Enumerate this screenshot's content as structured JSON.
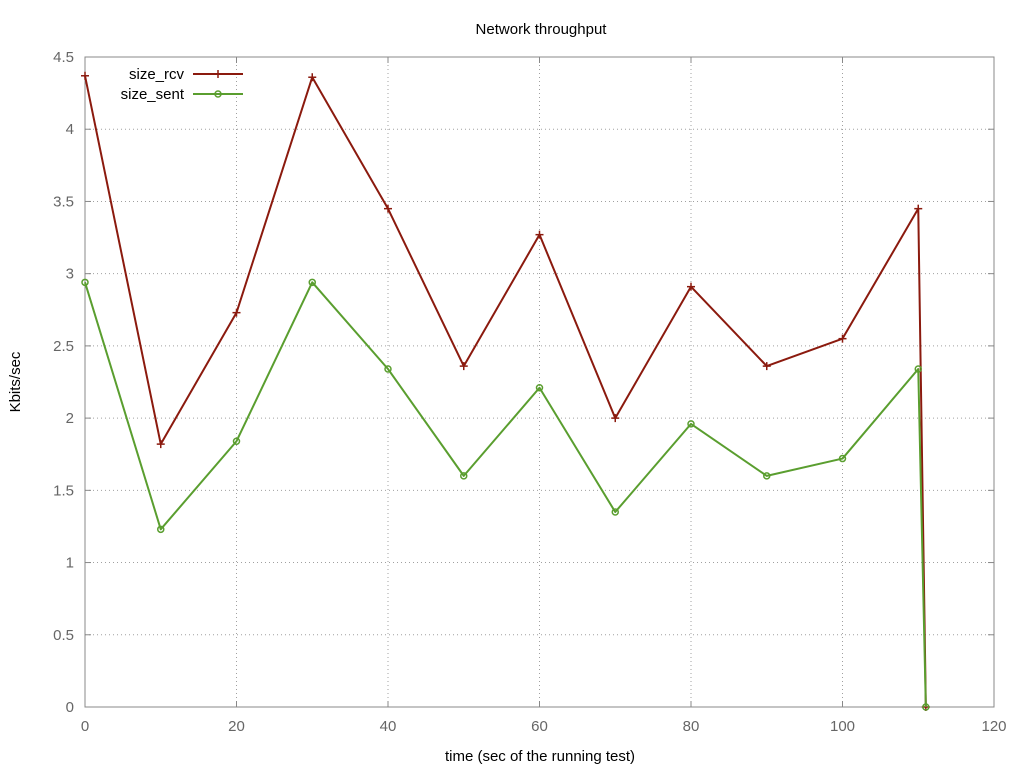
{
  "chart_data": {
    "type": "line",
    "title": "Network throughput",
    "xlabel": "time (sec of the running test)",
    "ylabel": "Kbits/sec",
    "xlim": [
      0,
      120
    ],
    "ylim": [
      0,
      4.5
    ],
    "xticks": [
      "0",
      "20",
      "40",
      "60",
      "80",
      "100",
      "120"
    ],
    "yticks": [
      "0",
      "0.5",
      "1",
      "1.5",
      "2",
      "2.5",
      "3",
      "3.5",
      "4",
      "4.5"
    ],
    "grid": true,
    "legend_position": "top-left",
    "series": [
      {
        "name": "size_rcv",
        "color": "#8b1a0e",
        "marker": "plus",
        "x": [
          0,
          10,
          20,
          30,
          40,
          50,
          60,
          70,
          80,
          90,
          100,
          110,
          111
        ],
        "y": [
          4.37,
          1.82,
          2.73,
          4.36,
          3.45,
          2.36,
          3.27,
          2.0,
          2.91,
          2.36,
          2.55,
          3.45,
          0
        ]
      },
      {
        "name": "size_sent",
        "color": "#5a9e2f",
        "marker": "circle",
        "x": [
          0,
          10,
          20,
          30,
          40,
          50,
          60,
          70,
          80,
          90,
          100,
          110,
          111
        ],
        "y": [
          2.94,
          1.23,
          1.84,
          2.94,
          2.34,
          1.6,
          2.21,
          1.35,
          1.96,
          1.6,
          1.72,
          2.34,
          0
        ]
      }
    ]
  }
}
